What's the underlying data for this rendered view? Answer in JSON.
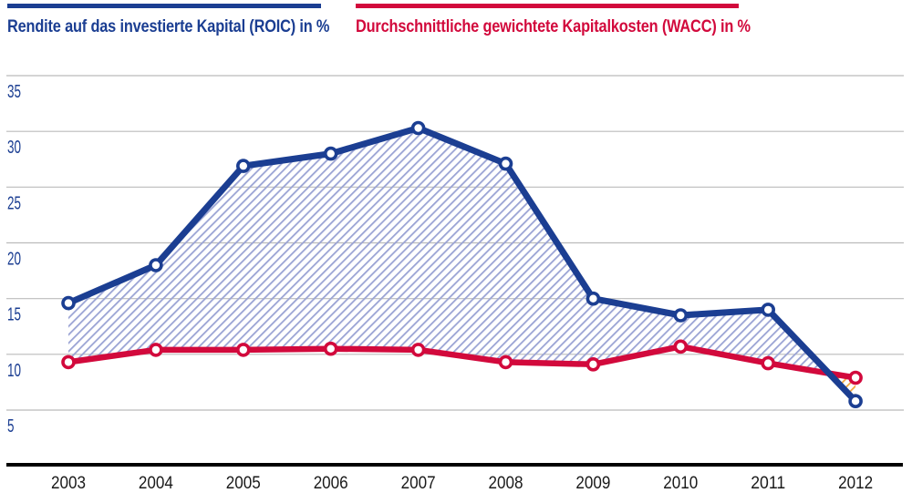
{
  "legend": {
    "roic_label": "Rendite auf das investierte Kapital (ROIC) in %",
    "wacc_label": "Durchschnittliche gewichtete Kapitalkosten (WACC) in %"
  },
  "colors": {
    "roic_blue": "#1b3e92",
    "wacc_red": "#d2093c",
    "hatch_blue": "#9aa3d4",
    "hatch_orange": "#f2a73f",
    "gridline_gray": "#bbbbbb",
    "axis_black": "#000000",
    "year_label_black": "#1a1a1a"
  },
  "chart_data": {
    "type": "line",
    "categories": [
      "2003",
      "2004",
      "2005",
      "2006",
      "2007",
      "2008",
      "2009",
      "2010",
      "2011",
      "2012"
    ],
    "series": [
      {
        "name": "Rendite auf das investierte Kapital (ROIC) in %",
        "color_key": "roic_blue",
        "values": [
          14.6,
          18.0,
          26.9,
          28.0,
          30.3,
          27.1,
          15.0,
          13.5,
          14.0,
          5.8
        ]
      },
      {
        "name": "Durchschnittliche gewichtete Kapitalkosten (WACC) in %",
        "color_key": "wacc_red",
        "values": [
          9.3,
          10.4,
          10.4,
          10.5,
          10.4,
          9.3,
          9.1,
          10.7,
          9.2,
          7.9
        ]
      }
    ],
    "title": "",
    "xlabel": "",
    "ylabel": "",
    "ylim": [
      0,
      36
    ],
    "yticks": [
      35,
      30,
      25,
      20,
      15,
      10,
      5
    ],
    "grid": "horizontal",
    "legend_position": "top",
    "marker": "open-circle",
    "fill_between": "hatched area between series: blue hatch where ROIC > WACC, orange hatch where WACC > ROIC"
  }
}
